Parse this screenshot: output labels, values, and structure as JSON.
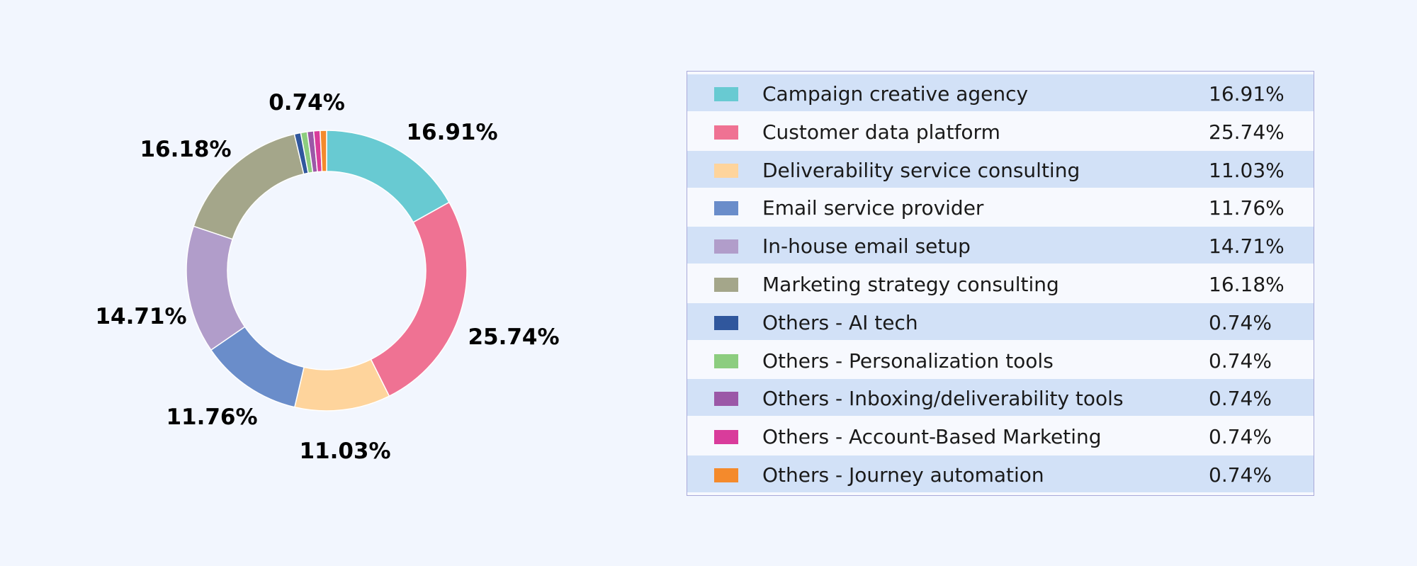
{
  "chart_data": {
    "type": "pie",
    "subtype": "donut",
    "title": "",
    "categories": [
      "Campaign creative agency",
      "Customer data platform",
      "Deliverability service consulting",
      "Email service provider",
      "In-house email setup",
      "Marketing strategy consulting",
      "Others - AI tech",
      "Others - Personalization tools",
      "Others - Inboxing/deliverability tools",
      "Others - Account-Based Marketing",
      "Others - Journey automation"
    ],
    "values": [
      16.91,
      25.74,
      11.03,
      11.76,
      14.71,
      16.18,
      0.74,
      0.74,
      0.74,
      0.74,
      0.74
    ],
    "value_labels": [
      "16.91%",
      "25.74%",
      "11.03%",
      "11.76%",
      "14.71%",
      "16.18%",
      "0.74%",
      "0.74%",
      "0.74%",
      "0.74%",
      "0.74%"
    ],
    "colors": [
      "#68cad2",
      "#ef7293",
      "#fed49c",
      "#6a8dca",
      "#b19dca",
      "#a4a68a",
      "#30579d",
      "#8ccd7f",
      "#9b58a7",
      "#d93c9b",
      "#f48a2c"
    ],
    "slice_labels_shown": [
      "16.91%",
      "25.74%",
      "11.03%",
      "11.76%",
      "14.71%",
      "16.18%",
      "0.74%"
    ],
    "legend_placement": "right"
  }
}
